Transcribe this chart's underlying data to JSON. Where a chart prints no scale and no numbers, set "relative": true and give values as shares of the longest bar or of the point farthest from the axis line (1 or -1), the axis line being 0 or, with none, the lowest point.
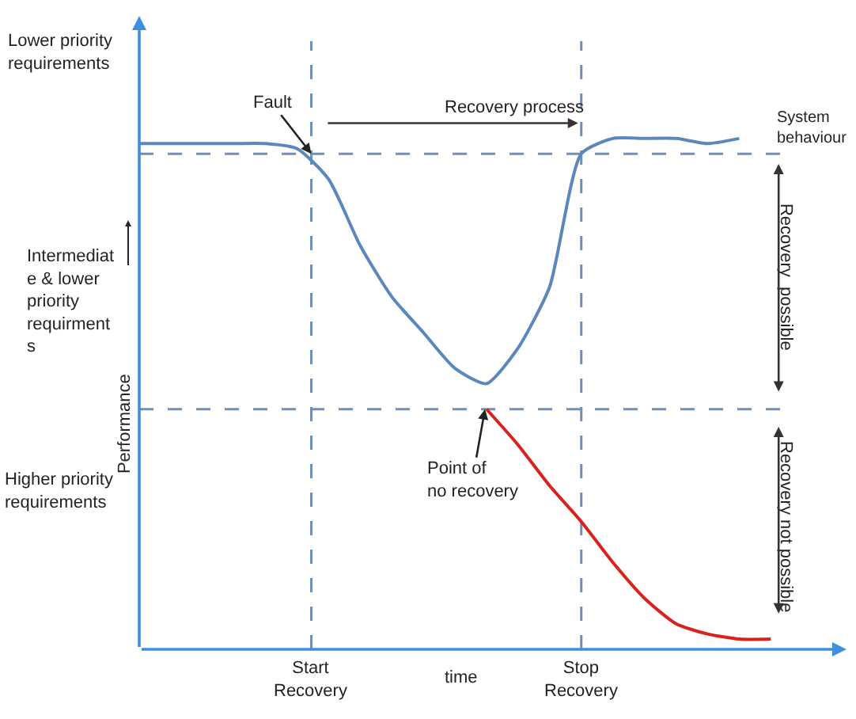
{
  "chart_data": {
    "type": "line",
    "relative": true,
    "xlabel": "time",
    "ylabel": "Performance",
    "categories": [
      null,
      null,
      null,
      null,
      null,
      null,
      null,
      null,
      null,
      null,
      null,
      null,
      null,
      null,
      null,
      null,
      null,
      null,
      null,
      null,
      null
    ],
    "series": [
      {
        "color": "#5b87bd",
        "values": [
          0.99,
          0.99,
          0.99,
          0.99,
          0.99,
          0.98,
          0.92,
          0.79,
          0.69,
          0.62,
          0.55,
          0.52,
          0.59,
          0.71,
          0.97,
          1,
          1,
          1,
          0.99,
          1,
          null
        ]
      },
      {
        "color": "#d9221c",
        "values": [
          null,
          null,
          null,
          null,
          null,
          null,
          null,
          null,
          null,
          null,
          null,
          0.47,
          0.4,
          0.32,
          0.25,
          0.17,
          0.1,
          0.05,
          0.03,
          0.02,
          0.02
        ]
      }
    ],
    "ref_lines": [
      {
        "axis": "y",
        "value": 0.97,
        "color": "#6f8fb8",
        "line_style": "dashed"
      },
      {
        "axis": "y",
        "value": 0.47,
        "color": "#6f8fb8",
        "line_style": "dashed"
      }
    ],
    "annotations": [
      "Lower priority\nrequirements",
      "Intermediat\ne & lower\npriority\nrequirment\ns",
      "Higher priority\nrequirements",
      "Fault",
      "Recovery process",
      "System\nbehaviour",
      "Recovery  possible",
      "Recovery not possible",
      "Point of\nno recovery",
      "Start\nRecovery",
      "Stop\nRecovery"
    ],
    "grid": false,
    "legend": false,
    "marker": "none",
    "line_style": "solid"
  }
}
